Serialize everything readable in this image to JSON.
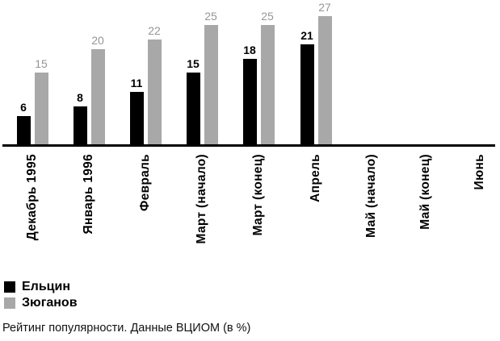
{
  "chart_data": {
    "type": "bar",
    "title": "",
    "xlabel": "",
    "ylabel": "",
    "categories": [
      "Декабрь 1995",
      "Январь 1996",
      "Февраль",
      "Март (начало)",
      "Март (конец)",
      "Апрель",
      "Май (начало)",
      "Май (конец)",
      "Июнь"
    ],
    "series": [
      {
        "name": "Ельцин",
        "color": "#000000",
        "label_color": "#000000",
        "values": [
          6,
          8,
          11,
          15,
          18,
          21,
          null,
          null,
          null
        ]
      },
      {
        "name": "Зюганов",
        "color": "#a8a8a8",
        "label_color": "#969696",
        "values": [
          15,
          20,
          22,
          25,
          25,
          27,
          null,
          null,
          null
        ]
      }
    ],
    "ylim": [
      0,
      28
    ],
    "grid": false,
    "value_labels": true,
    "legend_position": "bottom-left",
    "axis_color": "#000000",
    "caption": "Рейтинг популярности. Данные ВЦИОМ (в %)"
  }
}
